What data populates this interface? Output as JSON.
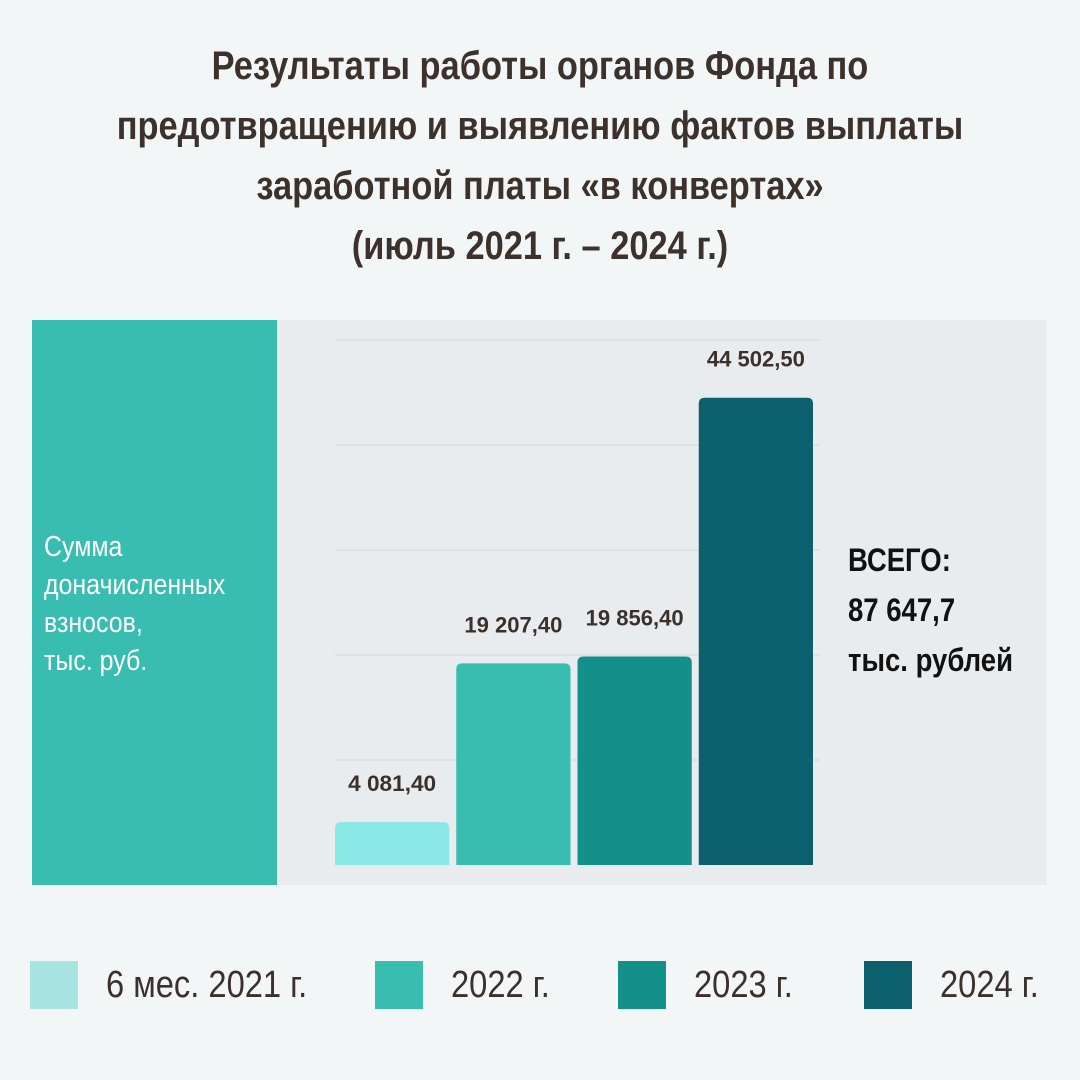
{
  "title_lines": [
    "Результаты работы органов Фонда по",
    "предотвращению и выявлению фактов выплаты",
    "заработной платы «в конвертах»",
    "(июль 2021 г. – 2024 г.)"
  ],
  "ylabel_lines": [
    "Сумма",
    "доначисленных",
    "взносов,",
    "тыс. руб."
  ],
  "total": {
    "line1": "ВСЕГО:",
    "line2": "87 647,7",
    "line3": "тыс. рублей"
  },
  "chart_data": {
    "type": "bar",
    "title": "Результаты работы органов Фонда по предотвращению и выявлению фактов выплаты заработной платы «в конвертах» (июль 2021 г. – 2024 г.)",
    "ylabel": "Сумма доначисленных взносов, тыс. руб.",
    "xlabel": "",
    "categories": [
      "6 мес. 2021 г.",
      "2022 г.",
      "2023 г.",
      "2024 г."
    ],
    "values": [
      4081.4,
      19207.4,
      19856.4,
      44502.5
    ],
    "value_labels": [
      "4 081,40",
      "19 207,40",
      "19 856,40",
      "44 502,50"
    ],
    "colors": [
      "#8ae8e6",
      "#38bdb0",
      "#13908a",
      "#0c606e"
    ],
    "ylim": [
      0,
      50000
    ],
    "grid": true,
    "legend_position": "bottom"
  },
  "legend": [
    {
      "label": "6 мес. 2021 г.",
      "color": "#a8e5e2"
    },
    {
      "label": "2022 г.",
      "color": "#38bdb0"
    },
    {
      "label": "2023 г.",
      "color": "#13908a"
    },
    {
      "label": "2024 г.",
      "color": "#0c606e"
    }
  ]
}
